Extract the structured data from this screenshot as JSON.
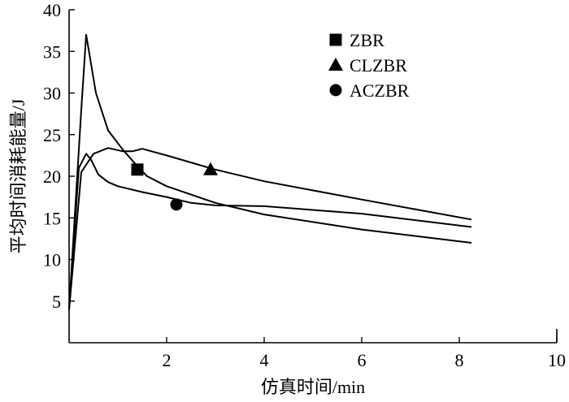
{
  "chart_data": {
    "type": "line",
    "xlabel": "仿真时间/min",
    "ylabel": "平均时间消耗能量/J",
    "xlim": [
      0,
      10
    ],
    "ylim": [
      0,
      40
    ],
    "x_ticks": [
      2,
      4,
      6,
      8,
      10
    ],
    "y_ticks": [
      5,
      10,
      15,
      20,
      25,
      30,
      35,
      40
    ],
    "x_tick_labels": [
      "2",
      "4",
      "6",
      "8",
      "10"
    ],
    "y_tick_labels": [
      "5",
      "10",
      "15",
      "20",
      "25",
      "30",
      "35",
      "40"
    ],
    "grid": false,
    "legend_position": "top-right",
    "series": [
      {
        "name": "ZBR",
        "marker": "square",
        "marker_point": [
          1.4,
          20.8
        ],
        "x": [
          0,
          0.25,
          0.35,
          0.55,
          0.8,
          1.1,
          1.4,
          1.6,
          2.0,
          2.5,
          3.0,
          4.0,
          6.0,
          8.25
        ],
        "y": [
          4,
          28,
          37,
          30,
          25.5,
          23.2,
          21.2,
          20.0,
          18.8,
          17.8,
          16.8,
          15.4,
          13.6,
          12.0
        ]
      },
      {
        "name": "CLZBR",
        "marker": "triangle",
        "marker_point": [
          2.9,
          20.8
        ],
        "x": [
          0,
          0.25,
          0.5,
          0.8,
          1.1,
          1.3,
          1.5,
          2.0,
          3.0,
          4.0,
          6.0,
          8.25
        ],
        "y": [
          4,
          20.5,
          22.7,
          23.4,
          23.0,
          23.0,
          23.3,
          22.5,
          20.8,
          19.4,
          17.2,
          14.8
        ]
      },
      {
        "name": "ACZBR",
        "marker": "circle",
        "marker_point": [
          2.2,
          16.6
        ],
        "x": [
          0,
          0.2,
          0.35,
          0.45,
          0.6,
          0.8,
          1.0,
          1.5,
          2.0,
          2.5,
          3.0,
          4.0,
          6.0,
          8.25
        ],
        "y": [
          4,
          21.0,
          22.7,
          22.0,
          20.2,
          19.3,
          18.8,
          18.1,
          17.5,
          16.8,
          16.5,
          16.4,
          15.5,
          13.9
        ]
      }
    ]
  }
}
